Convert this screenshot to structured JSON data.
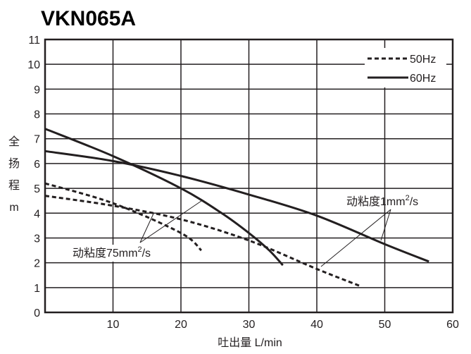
{
  "chart_data": {
    "type": "line",
    "title": "VKN065A",
    "xlabel": "吐出量 L/min",
    "ylabel": "全揚程 m",
    "ylabel_chars": [
      "全",
      "扬",
      "程",
      "m"
    ],
    "xlim": [
      0,
      60
    ],
    "ylim": [
      0,
      11
    ],
    "x_ticks": [
      10,
      20,
      30,
      40,
      50,
      60
    ],
    "y_ticks": [
      0,
      1,
      2,
      3,
      4,
      5,
      6,
      7,
      8,
      9,
      10,
      11
    ],
    "grid": true,
    "legend_position": "top-right",
    "legend": [
      {
        "label": "50Hz",
        "style": "dashed"
      },
      {
        "label": "60Hz",
        "style": "solid"
      }
    ],
    "series": [
      {
        "style": "solid",
        "hz": "60Hz",
        "viscosity": "1",
        "points": [
          [
            0,
            6.5
          ],
          [
            10,
            6.1
          ],
          [
            20,
            5.5
          ],
          [
            30,
            4.75
          ],
          [
            40,
            3.9
          ],
          [
            50,
            2.75
          ],
          [
            56.5,
            2.05
          ]
        ]
      },
      {
        "style": "solid",
        "hz": "60Hz",
        "viscosity": "75",
        "points": [
          [
            0,
            7.4
          ],
          [
            10,
            6.3
          ],
          [
            20,
            5.0
          ],
          [
            26,
            4.0
          ],
          [
            30,
            3.2
          ],
          [
            33,
            2.5
          ],
          [
            35,
            1.9
          ]
        ]
      },
      {
        "style": "dashed",
        "hz": "50Hz",
        "viscosity": "1",
        "points": [
          [
            0,
            4.7
          ],
          [
            10,
            4.3
          ],
          [
            20,
            3.75
          ],
          [
            30,
            2.9
          ],
          [
            40,
            1.75
          ],
          [
            46.5,
            1.05
          ]
        ]
      },
      {
        "style": "dashed",
        "hz": "50Hz",
        "viscosity": "75",
        "points": [
          [
            0,
            5.2
          ],
          [
            10,
            4.4
          ],
          [
            20,
            3.2
          ],
          [
            23,
            2.5
          ]
        ]
      }
    ],
    "annotations": [
      {
        "text": "动粘度1mm",
        "sup": "2",
        "tail": "/s",
        "target": "viscosity 1"
      },
      {
        "text": "动粘度75mm",
        "sup": "2",
        "tail": "/s",
        "target": "viscosity 75"
      }
    ]
  }
}
